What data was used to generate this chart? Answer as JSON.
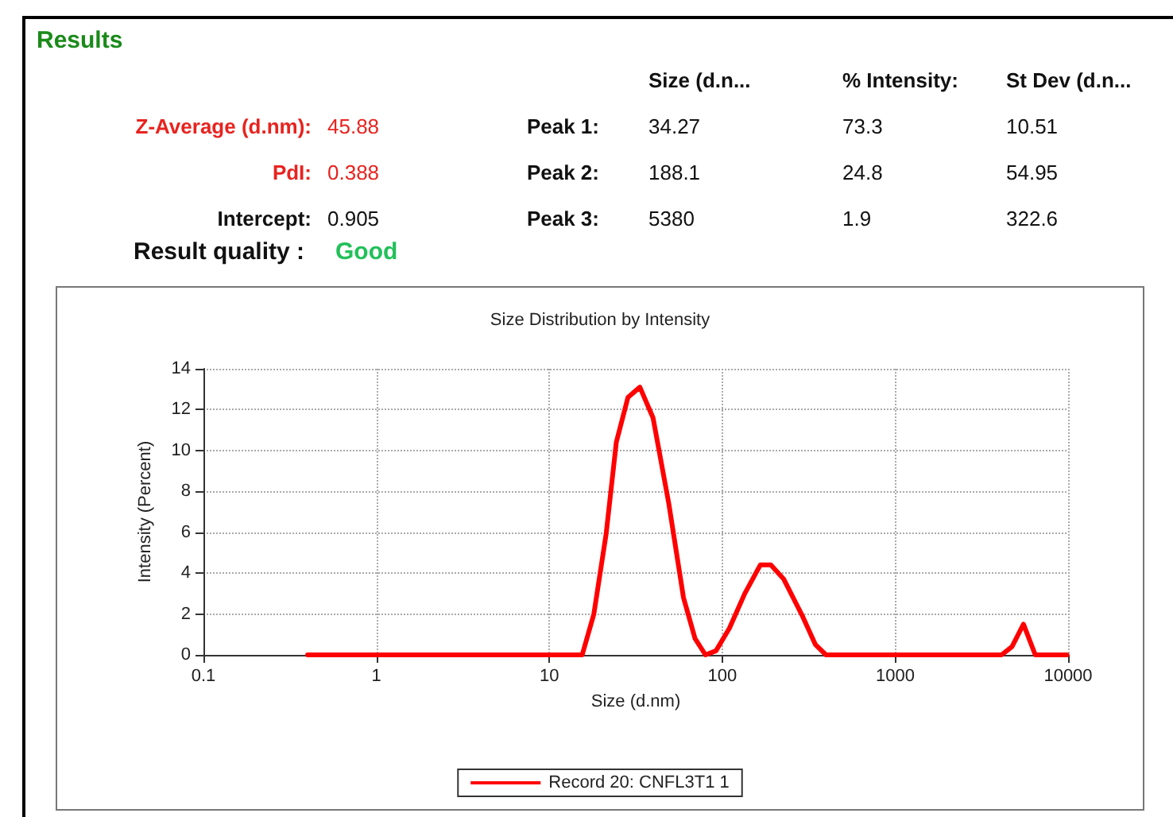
{
  "chart_data": {
    "type": "line",
    "title": "Size Distribution by Intensity",
    "xlabel": "Size (d.nm)",
    "ylabel": "Intensity (Percent)",
    "annotations": [
      "Results",
      "Size (d.n...",
      "% Intensity:",
      "St Dev (d.n...",
      "Z-Average (d.nm):",
      "45.88",
      "Peak 1:",
      "34.27",
      "73.3",
      "10.51",
      "PdI:",
      "0.388",
      "Peak 2:",
      "188.1",
      "24.8",
      "54.95",
      "Intercept:",
      "0.905",
      "Peak 3:",
      "5380",
      "1.9",
      "322.6",
      "Result quality :",
      "Good"
    ],
    "series": [
      {
        "name": "Record 20: CNFL3T1 1",
        "color": "#ff0000",
        "x": [
          0.4,
          15.5,
          18.1,
          21.3,
          24.4,
          28.5,
          33.4,
          39.8,
          49.1,
          59.7,
          69.6,
          80,
          92,
          110,
          135,
          166,
          191,
          227,
          291,
          346,
          398,
          4120,
          4740,
          5520,
          6460,
          9860
        ],
        "values": [
          0,
          0,
          2.0,
          5.9,
          10.4,
          12.6,
          13.1,
          11.6,
          7.4,
          2.8,
          0.8,
          0,
          0.2,
          1.3,
          3.0,
          4.4,
          4.4,
          3.7,
          1.9,
          0.5,
          0,
          0,
          0.4,
          1.5,
          0,
          0
        ]
      }
    ],
    "log": "x",
    "xlim": [
      0.1,
      10000
    ],
    "xticks": [
      0.1,
      1,
      10,
      100,
      1000,
      10000
    ],
    "ylim": [
      0,
      14
    ],
    "yticks": [
      0,
      2,
      4,
      6,
      8,
      10,
      12,
      14
    ],
    "grid": true,
    "legend": "bottom",
    "marker": "none",
    "line_style": "solid"
  }
}
